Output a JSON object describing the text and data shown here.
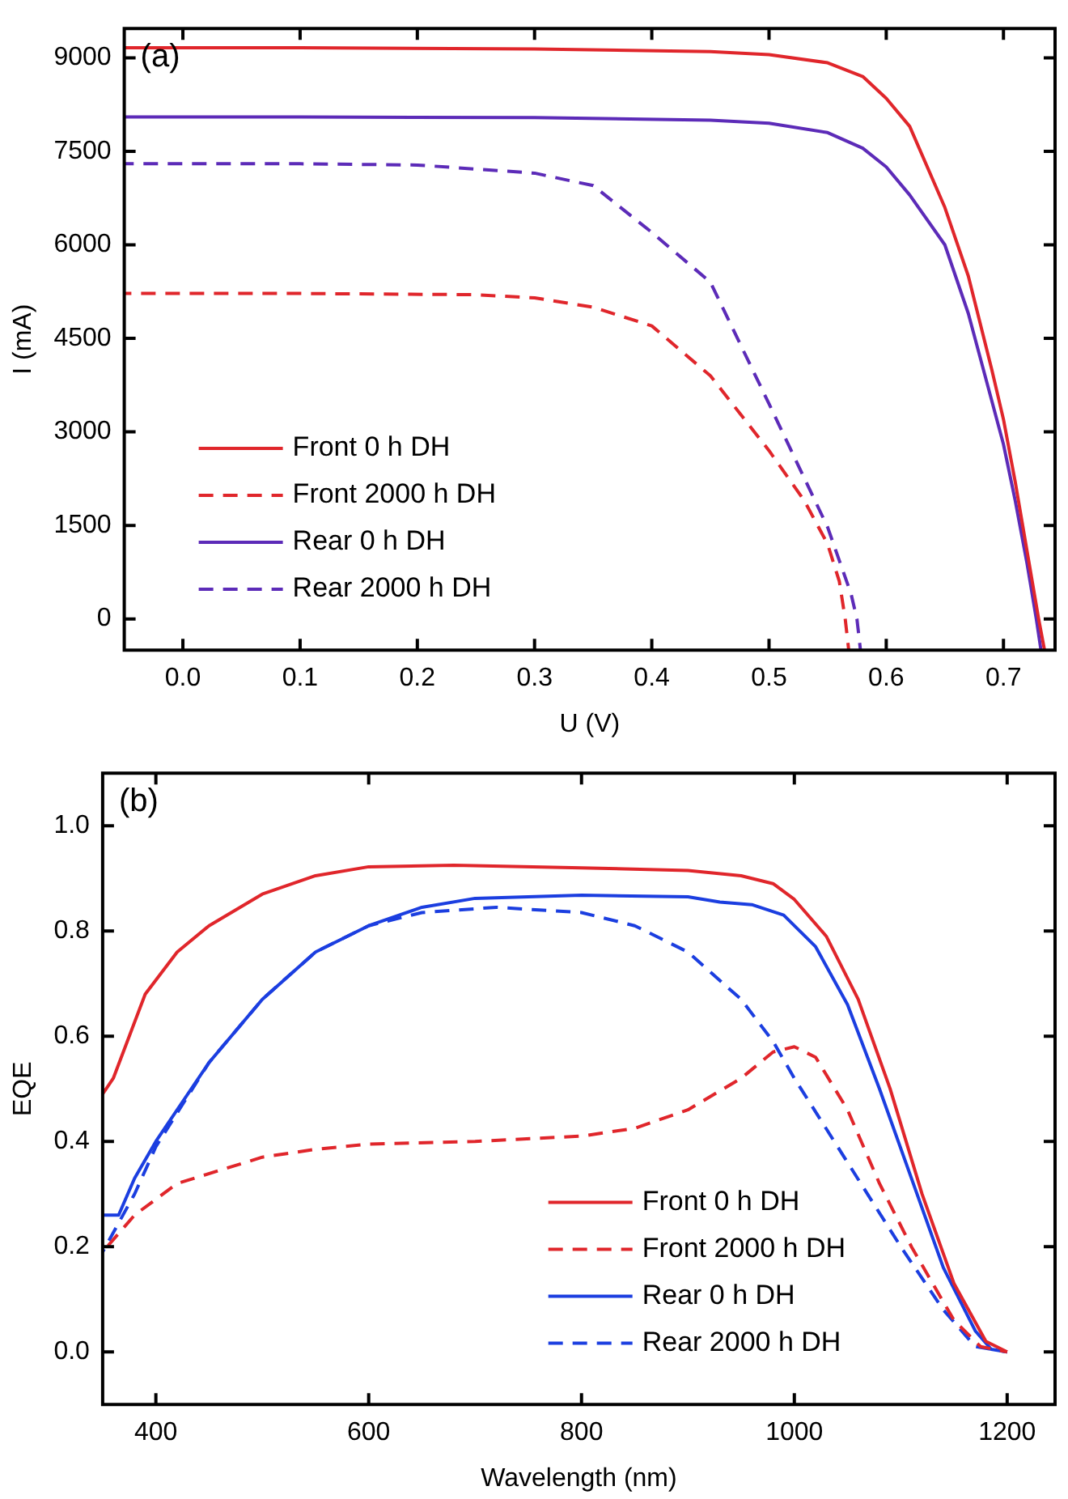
{
  "chart_data": [
    {
      "type": "line",
      "xlabel": "U (V)",
      "ylabel": "I (mA)",
      "annotations": [
        "(a)"
      ],
      "legend": "bottom left",
      "xlim": [
        -0.05,
        0.744
      ],
      "ylim": [
        -500,
        9470
      ],
      "xticks": [
        {
          "value": 0,
          "label": "0.0"
        },
        {
          "value": 0.1,
          "label": "0.1"
        },
        {
          "value": 0.2,
          "label": "0.2"
        },
        {
          "value": 0.3,
          "label": "0.3"
        },
        {
          "value": 0.4,
          "label": "0.4"
        },
        {
          "value": 0.5,
          "label": "0.5"
        },
        {
          "value": 0.6,
          "label": "0.6"
        },
        {
          "value": 0.7,
          "label": "0.7"
        }
      ],
      "yticks": [
        0,
        1500,
        3000,
        4500,
        6000,
        7500,
        9000
      ],
      "series": [
        {
          "name": "Front 0 h DH",
          "color": "#e0262b",
          "line_style": "solid",
          "x": [
            -0.05,
            0.1,
            0.3,
            0.45,
            0.5,
            0.55,
            0.58,
            0.6,
            0.62,
            0.65,
            0.67,
            0.69,
            0.7,
            0.71,
            0.72,
            0.73,
            0.735
          ],
          "values": [
            9160,
            9160,
            9140,
            9100,
            9050,
            8920,
            8700,
            8350,
            7900,
            6600,
            5500,
            4000,
            3200,
            2200,
            1100,
            0,
            -500
          ]
        },
        {
          "name": "Front 2000 h DH",
          "color": "#e0262b",
          "line_style": "dashed",
          "x": [
            -0.05,
            0.1,
            0.25,
            0.3,
            0.35,
            0.4,
            0.45,
            0.5,
            0.53,
            0.55,
            0.56,
            0.565,
            0.568
          ],
          "values": [
            5220,
            5220,
            5200,
            5150,
            5000,
            4700,
            3900,
            2700,
            1900,
            1200,
            600,
            0,
            -500
          ]
        },
        {
          "name": "Rear 0 h DH",
          "color": "#5c2bb8",
          "line_style": "solid",
          "x": [
            -0.05,
            0.1,
            0.3,
            0.45,
            0.5,
            0.55,
            0.58,
            0.6,
            0.62,
            0.65,
            0.67,
            0.69,
            0.7,
            0.71,
            0.72,
            0.728,
            0.732
          ],
          "values": [
            8050,
            8050,
            8040,
            8000,
            7950,
            7800,
            7550,
            7250,
            6800,
            6000,
            4900,
            3500,
            2800,
            1900,
            900,
            0,
            -500
          ]
        },
        {
          "name": "Rear 2000 h DH",
          "color": "#5c2bb8",
          "line_style": "dashed",
          "x": [
            -0.05,
            0.1,
            0.2,
            0.3,
            0.35,
            0.4,
            0.45,
            0.5,
            0.55,
            0.57,
            0.575,
            0.578
          ],
          "values": [
            7300,
            7300,
            7280,
            7150,
            6950,
            6200,
            5400,
            3450,
            1470,
            400,
            0,
            -500
          ]
        }
      ]
    },
    {
      "type": "line",
      "xlabel": "Wavelength (nm)",
      "ylabel": "EQE",
      "annotations": [
        "(b)"
      ],
      "legend": "bottom right",
      "xlim": [
        350,
        1245
      ],
      "ylim": [
        -0.1,
        1.1
      ],
      "xticks": [
        400,
        600,
        800,
        1000,
        1200
      ],
      "yticks": [
        {
          "value": 0,
          "label": "0.0"
        },
        {
          "value": 0.2,
          "label": "0.2"
        },
        {
          "value": 0.4,
          "label": "0.4"
        },
        {
          "value": 0.6,
          "label": "0.6"
        },
        {
          "value": 0.8,
          "label": "0.8"
        },
        {
          "value": 1,
          "label": "1.0"
        }
      ],
      "series": [
        {
          "name": "Front 0 h DH",
          "color": "#e0262b",
          "line_style": "solid",
          "x": [
            350,
            360,
            375,
            390,
            420,
            450,
            500,
            550,
            600,
            680,
            800,
            900,
            950,
            980,
            1000,
            1030,
            1060,
            1090,
            1120,
            1150,
            1180,
            1200
          ],
          "values": [
            0.49,
            0.52,
            0.6,
            0.68,
            0.76,
            0.81,
            0.87,
            0.905,
            0.922,
            0.925,
            0.92,
            0.915,
            0.905,
            0.89,
            0.86,
            0.79,
            0.67,
            0.5,
            0.3,
            0.13,
            0.02,
            0
          ]
        },
        {
          "name": "Front 2000 h DH",
          "color": "#e0262b",
          "line_style": "dashed",
          "x": [
            350,
            380,
            420,
            460,
            500,
            550,
            600,
            700,
            800,
            850,
            900,
            950,
            980,
            1000,
            1020,
            1050,
            1080,
            1110,
            1150,
            1175,
            1200
          ],
          "values": [
            0.19,
            0.26,
            0.32,
            0.345,
            0.37,
            0.385,
            0.395,
            0.4,
            0.41,
            0.425,
            0.46,
            0.52,
            0.57,
            0.58,
            0.56,
            0.46,
            0.32,
            0.2,
            0.06,
            0.01,
            0
          ]
        },
        {
          "name": "Rear 0 h DH",
          "color": "#1b3ee0",
          "line_style": "solid",
          "x": [
            350,
            365,
            380,
            400,
            450,
            500,
            550,
            600,
            650,
            700,
            800,
            900,
            930,
            960,
            990,
            1020,
            1050,
            1080,
            1110,
            1140,
            1170,
            1185,
            1200
          ],
          "values": [
            0.26,
            0.26,
            0.33,
            0.4,
            0.55,
            0.67,
            0.76,
            0.81,
            0.845,
            0.862,
            0.868,
            0.865,
            0.855,
            0.85,
            0.83,
            0.77,
            0.66,
            0.5,
            0.33,
            0.16,
            0.04,
            0.005,
            0
          ]
        },
        {
          "name": "Rear 2000 h DH",
          "color": "#1b3ee0",
          "line_style": "dashed",
          "x": [
            350,
            380,
            400,
            450,
            500,
            550,
            600,
            650,
            720,
            800,
            850,
            900,
            950,
            980,
            1000,
            1050,
            1100,
            1140,
            1170,
            1200
          ],
          "values": [
            0.19,
            0.3,
            0.39,
            0.55,
            0.67,
            0.76,
            0.81,
            0.835,
            0.845,
            0.835,
            0.81,
            0.76,
            0.67,
            0.59,
            0.52,
            0.36,
            0.2,
            0.08,
            0.01,
            0
          ]
        }
      ]
    }
  ]
}
